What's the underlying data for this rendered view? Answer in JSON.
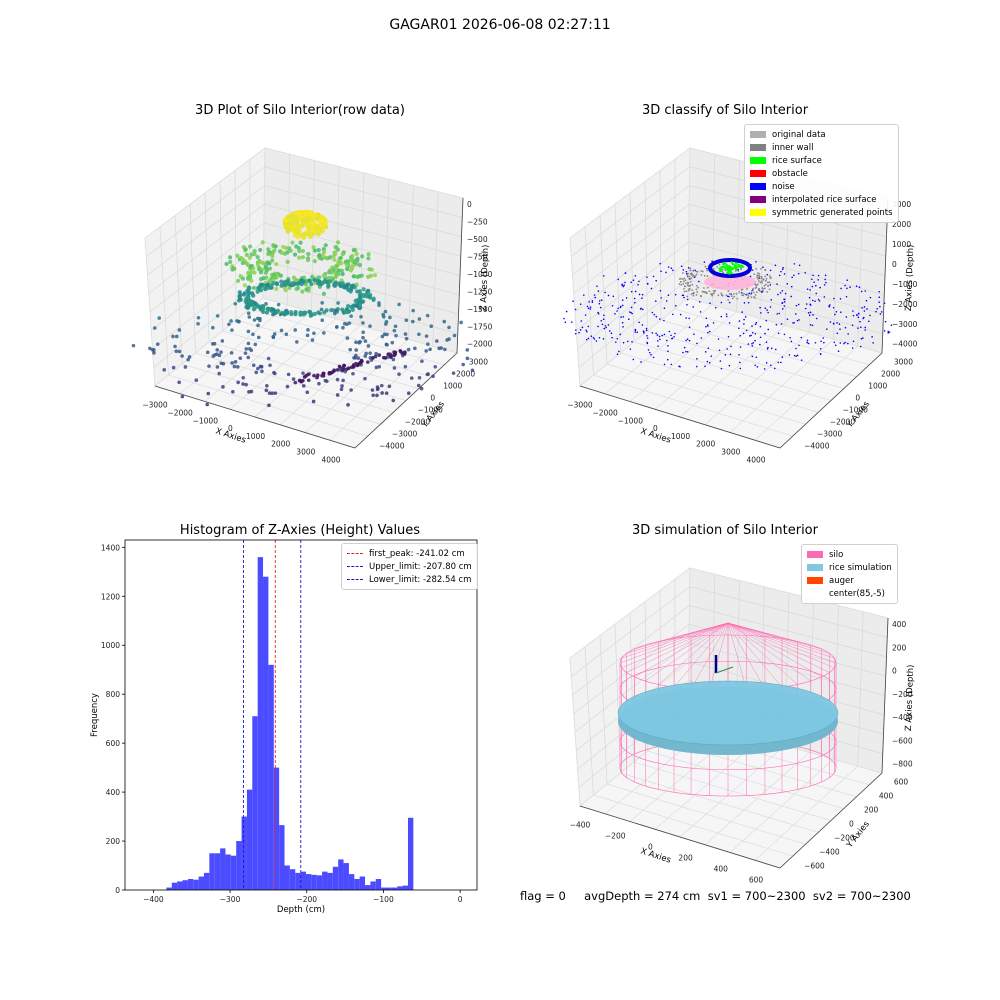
{
  "suptitle": "GAGAR01 2026-06-08 02:27:11",
  "colors": {
    "hist_bar": "#4b4bff",
    "first_peak_line": "#e8281f",
    "limit_line": "#1a1ad6",
    "silo": "#ff69b4",
    "rice": "#7ec8e3",
    "auger": "#ff4500"
  },
  "chart_data": [
    {
      "type": "scatter",
      "title": "3D Plot of Silo Interior(row data)",
      "xlabel": "X Axies",
      "ylabel": "Y Axies",
      "zlabel": "Z Axies (Depth)",
      "x_ticks": [
        "−3000",
        "−2000",
        "−1000",
        "0",
        "1000",
        "2000",
        "3000",
        "4000"
      ],
      "y_ticks": [
        "−4000",
        "−3000",
        "−2000",
        "−1000",
        "0",
        "1000",
        "2000",
        "3000"
      ],
      "z_ticks": [
        "0",
        "−250",
        "−500",
        "−750",
        "−1000",
        "−1250",
        "−1500",
        "−1750",
        "−2000"
      ],
      "colormap": "viridis"
    },
    {
      "type": "scatter",
      "title": "3D classify of Silo Interior",
      "xlabel": "X Axies",
      "ylabel": "Y Axies",
      "zlabel": "Z Axies (Depth)",
      "x_ticks": [
        "−3000",
        "−2000",
        "−1000",
        "0",
        "1000",
        "2000",
        "3000",
        "4000"
      ],
      "y_ticks": [
        "−4000",
        "−3000",
        "−2000",
        "−1000",
        "0",
        "1000",
        "2000",
        "3000"
      ],
      "z_ticks": [
        "3000",
        "2000",
        "1000",
        "0",
        "−1000",
        "−2000",
        "−3000",
        "−4000"
      ],
      "legend": [
        {
          "label": "original data",
          "color": "#b0b0b0"
        },
        {
          "label": "inner wall",
          "color": "#808080"
        },
        {
          "label": "rice surface",
          "color": "#00ff00"
        },
        {
          "label": "obstacle",
          "color": "#ff0000"
        },
        {
          "label": "noise",
          "color": "#0000ff"
        },
        {
          "label": "interpolated rice surface",
          "color": "#800080"
        },
        {
          "label": "symmetric generated points",
          "color": "#ffff00"
        }
      ]
    },
    {
      "type": "bar",
      "title": "Histogram of Z-Axies (Height) Values",
      "xlabel": "Depth (cm)",
      "ylabel": "Frequency",
      "xlim": [
        -437,
        22
      ],
      "ylim": [
        0,
        1430
      ],
      "x_ticks": [
        -400,
        -300,
        -200,
        -100,
        0
      ],
      "y_ticks": [
        0,
        200,
        400,
        600,
        800,
        1000,
        1200,
        1400
      ],
      "bin_width": 7,
      "bins_start": [
        -383,
        -376,
        -369,
        -362,
        -355,
        -348,
        -341,
        -334,
        -327,
        -320,
        -313,
        -306,
        -299,
        -292,
        -285,
        -278,
        -271,
        -264,
        -257,
        -250,
        -243,
        -236,
        -229,
        -222,
        -215,
        -208,
        -201,
        -194,
        -187,
        -180,
        -173,
        -166,
        -159,
        -152,
        -145,
        -138,
        -131,
        -124,
        -117,
        -110,
        -103,
        -96,
        -89,
        -82,
        -75,
        -68,
        -61,
        -54,
        -47,
        -40,
        -33,
        -26,
        -19,
        -12,
        -5
      ],
      "values": [
        10,
        30,
        35,
        40,
        45,
        42,
        55,
        70,
        150,
        150,
        170,
        145,
        140,
        200,
        300,
        410,
        710,
        1360,
        1280,
        920,
        500,
        265,
        100,
        85,
        70,
        75,
        65,
        62,
        60,
        75,
        70,
        95,
        125,
        110,
        65,
        45,
        55,
        20,
        35,
        45,
        10,
        10,
        10,
        15,
        18,
        295,
        0,
        0,
        0,
        0,
        0,
        0,
        0,
        0,
        0
      ],
      "lines": [
        {
          "label": "first_peak: -241.02 cm",
          "x": -241.02,
          "color": "#e8281f"
        },
        {
          "label": "Upper_limit: -207.80 cm",
          "x": -207.8,
          "color": "#1a1ad6"
        },
        {
          "label": "Lower_limit: -282.54 cm",
          "x": -282.54,
          "color": "#1a1ad6"
        }
      ]
    },
    {
      "type": "scatter",
      "title": "3D simulation of Silo Interior",
      "xlabel": "X Axies",
      "ylabel": "Y Axies",
      "zlabel": "Z Axies (Depth)",
      "x_ticks": [
        "−400",
        "−200",
        "0",
        "200",
        "400",
        "600"
      ],
      "y_ticks": [
        "−600",
        "−400",
        "−200",
        "0",
        "200",
        "400",
        "600"
      ],
      "z_ticks": [
        "400",
        "200",
        "0",
        "−200",
        "−400",
        "−600",
        "−800"
      ],
      "legend": [
        {
          "label": "silo",
          "color": "#ff69b4"
        },
        {
          "label": "rice simulation",
          "color": "#7ec8e3"
        },
        {
          "label": "auger",
          "color": "#ff4500"
        },
        {
          "label": "center(85,-5)",
          "color": "#ffffff"
        }
      ]
    }
  ],
  "footer": "flag = 0     avgDepth = 274 cm  sv1 = 700~2300  sv2 = 700~2300"
}
